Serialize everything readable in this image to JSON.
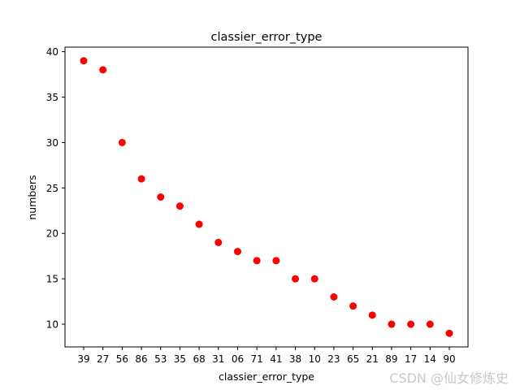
{
  "chart_data": {
    "type": "scatter",
    "title": "classier_error_type",
    "xlabel": "classier_error_type",
    "ylabel": "numbers",
    "categories": [
      "39",
      "27",
      "56",
      "86",
      "53",
      "35",
      "68",
      "31",
      "06",
      "71",
      "41",
      "38",
      "10",
      "23",
      "65",
      "21",
      "89",
      "17",
      "14",
      "90"
    ],
    "values": [
      39,
      38,
      30,
      26,
      24,
      23,
      21,
      19,
      18,
      17,
      17,
      15,
      15,
      13,
      12,
      11,
      10,
      10,
      10,
      9
    ],
    "ylim": [
      7.5,
      40.5
    ],
    "yticks": [
      10,
      15,
      20,
      25,
      30,
      35,
      40
    ],
    "marker_color": "#ff0000",
    "grid": false,
    "legend": "none"
  },
  "watermark": "CSDN @仙女修炼史"
}
